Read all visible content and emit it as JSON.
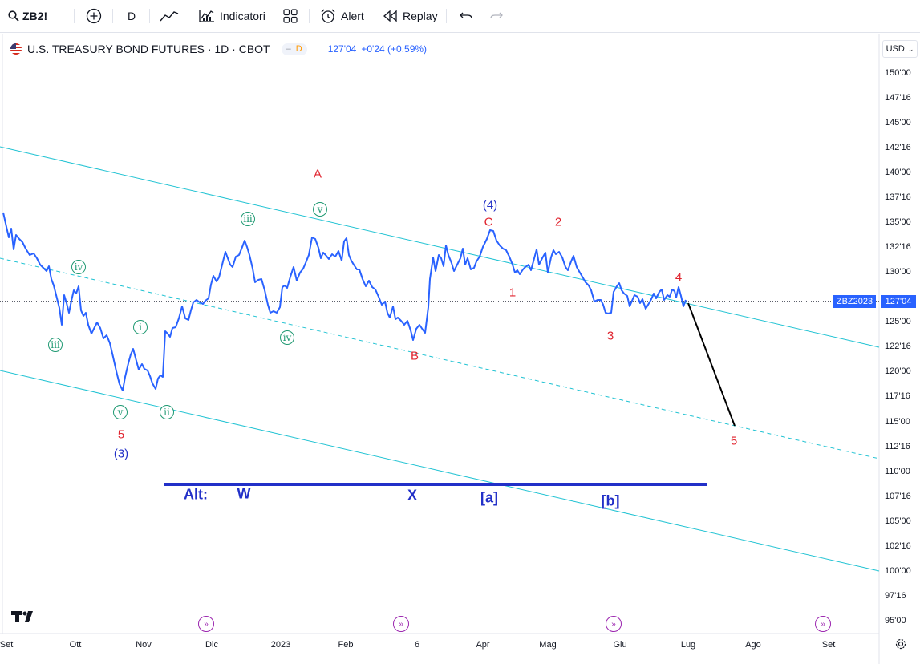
{
  "toolbar": {
    "symbol": "ZB2!",
    "interval": "D",
    "indicators_label": "Indicatori",
    "alert_label": "Alert",
    "replay_label": "Replay"
  },
  "legend": {
    "title": "U.S. TREASURY BOND FUTURES · 1D · CBOT",
    "badge": "D",
    "price": "127'04",
    "change": "+0'24 (+0.59%)"
  },
  "currency": "USD",
  "y_axis": {
    "labels": [
      "150'00",
      "147'16",
      "145'00",
      "142'16",
      "140'00",
      "137'16",
      "135'00",
      "132'16",
      "130'00",
      "125'00",
      "122'16",
      "120'00",
      "117'16",
      "115'00",
      "112'16",
      "110'00",
      "107'16",
      "105'00",
      "102'16",
      "100'00",
      "97'16",
      "95'00"
    ]
  },
  "x_axis": {
    "labels": [
      "Set",
      "Ott",
      "Nov",
      "Dic",
      "2023",
      "Feb",
      "6",
      "Apr",
      "Mag",
      "Giu",
      "Lug",
      "Ago",
      "Set"
    ]
  },
  "price_tag": {
    "symbol": "ZBZ2023",
    "value": "127'04"
  },
  "colors": {
    "price_line": "#2962ff",
    "channel": "#22c3d3",
    "wave_red": "#e0232e",
    "wave_blue": "#2230c8",
    "wave_green": "#1f9972",
    "projection": "#000000"
  },
  "annotations": {
    "red": {
      "A": "A",
      "C": "C",
      "two": "2",
      "one": "1",
      "three": "3",
      "four": "4",
      "B": "B",
      "five_left": "5",
      "five_right": "5"
    },
    "blue": {
      "four_paren": "(4)",
      "three_paren": "(3)"
    },
    "green": {
      "iii_top": "iii",
      "v_top": "v",
      "iv_left": "iv",
      "iii_left": "iii",
      "i": "i",
      "v_low": "v",
      "ii": "ii",
      "iv_mid": "iv"
    },
    "alt": {
      "label": "Alt:",
      "W": "W",
      "X": "X",
      "a": "[a]",
      "b": "[b]"
    }
  },
  "chart_data": {
    "type": "line",
    "symbol": "ZB2!",
    "interval": "1D",
    "last_price": "127'04",
    "x_axis_labels": [
      "Set",
      "Ott",
      "Nov",
      "Dic",
      "2023",
      "Feb",
      "6",
      "Apr",
      "Mag",
      "Giu",
      "Lug",
      "Ago",
      "Set"
    ],
    "y_axis_labels": [
      "150'00",
      "147'16",
      "145'00",
      "142'16",
      "140'00",
      "137'16",
      "135'00",
      "132'16",
      "130'00",
      "125'00",
      "122'16",
      "120'00",
      "117'16",
      "115'00",
      "112'16",
      "110'00",
      "107'16",
      "105'00",
      "102'16",
      "100'00",
      "97'16",
      "95'00"
    ],
    "y_range": [
      95,
      150
    ],
    "series": [
      {
        "name": "ZB2!",
        "approx_points": [
          [
            "Set",
            134.5
          ],
          [
            "Set",
            132.5
          ],
          [
            "Set",
            133.3
          ],
          [
            "Set",
            131.5
          ],
          [
            "Set",
            133.0
          ],
          [
            "Set",
            132.2
          ],
          [
            "Set",
            131.2
          ],
          [
            "Set",
            130.3
          ],
          [
            "Set",
            130.0
          ],
          [
            "Set",
            128.2
          ],
          [
            "Set",
            129.5
          ],
          [
            "Ott",
            123.8
          ],
          [
            "Ott",
            127.5
          ],
          [
            "Ott",
            126.2
          ],
          [
            "Ott",
            128.0
          ],
          [
            "Ott",
            124.5
          ],
          [
            "Ott",
            123.5
          ],
          [
            "Ott",
            122.8
          ],
          [
            "Ott",
            124.0
          ],
          [
            "Ott",
            121.0
          ],
          [
            "Ott",
            118.8
          ],
          [
            "Ott",
            117.8
          ],
          [
            "Ott",
            120.2
          ],
          [
            "Ott",
            121.8
          ],
          [
            "Nov",
            119.2
          ],
          [
            "Nov",
            120.2
          ],
          [
            "Nov",
            119.5
          ],
          [
            "Nov",
            118.0
          ],
          [
            "Nov",
            119.0
          ],
          [
            "Nov",
            123.5
          ],
          [
            "Nov",
            124.5
          ],
          [
            "Nov",
            126.2
          ],
          [
            "Nov",
            127.0
          ],
          [
            "Dic",
            126.5
          ],
          [
            "Dic",
            128.5
          ],
          [
            "Dic",
            130.0
          ],
          [
            "Dic",
            132.0
          ],
          [
            "Dic",
            130.5
          ],
          [
            "Dic",
            133.0
          ],
          [
            "Dic",
            131.5
          ],
          [
            "Dic",
            129.5
          ],
          [
            "Dic",
            128.0
          ],
          [
            "Dic",
            126.0
          ],
          [
            "2023",
            125.5
          ],
          [
            "2023",
            128.8
          ],
          [
            "2023",
            130.0
          ],
          [
            "2023",
            129.5
          ],
          [
            "2023",
            131.5
          ],
          [
            "2023",
            133.3
          ],
          [
            "2023",
            131.8
          ],
          [
            "2023",
            132.5
          ],
          [
            "2023",
            133.0
          ],
          [
            "Feb",
            131.5
          ],
          [
            "Feb",
            130.5
          ],
          [
            "Feb",
            128.8
          ],
          [
            "Feb",
            128.0
          ],
          [
            "Feb",
            126.8
          ],
          [
            "Feb",
            125.0
          ],
          [
            "Feb",
            123.8
          ],
          [
            "Feb",
            124.5
          ],
          [
            "6",
            122.8
          ],
          [
            "6",
            125.0
          ],
          [
            "6",
            127.8
          ],
          [
            "6",
            131.8
          ],
          [
            "6",
            130.8
          ],
          [
            "6",
            132.5
          ],
          [
            "6",
            130.5
          ],
          [
            "6",
            132.0
          ],
          [
            "6",
            130.8
          ],
          [
            "Apr",
            132.0
          ],
          [
            "Apr",
            134.2
          ],
          [
            "Apr",
            132.8
          ],
          [
            "Apr",
            132.0
          ],
          [
            "Apr",
            131.5
          ],
          [
            "Apr",
            129.8
          ],
          [
            "Mag",
            131.3
          ],
          [
            "Mag",
            130.8
          ],
          [
            "Mag",
            132.5
          ],
          [
            "Mag",
            131.0
          ],
          [
            "Mag",
            132.5
          ],
          [
            "Mag",
            130.3
          ],
          [
            "Mag",
            131.8
          ],
          [
            "Mag",
            130.0
          ],
          [
            "Giu",
            128.5
          ],
          [
            "Giu",
            127.2
          ],
          [
            "Giu",
            126.0
          ],
          [
            "Giu",
            128.2
          ],
          [
            "Giu",
            127.5
          ],
          [
            "Giu",
            126.8
          ],
          [
            "Giu",
            127.8
          ],
          [
            "Giu",
            127.2
          ],
          [
            "Giu",
            128.0
          ],
          [
            "Lug",
            127.5
          ],
          [
            "Lug",
            128.3
          ],
          [
            "Lug",
            126.0
          ],
          [
            "Lug",
            127.1
          ]
        ]
      }
    ]
  }
}
